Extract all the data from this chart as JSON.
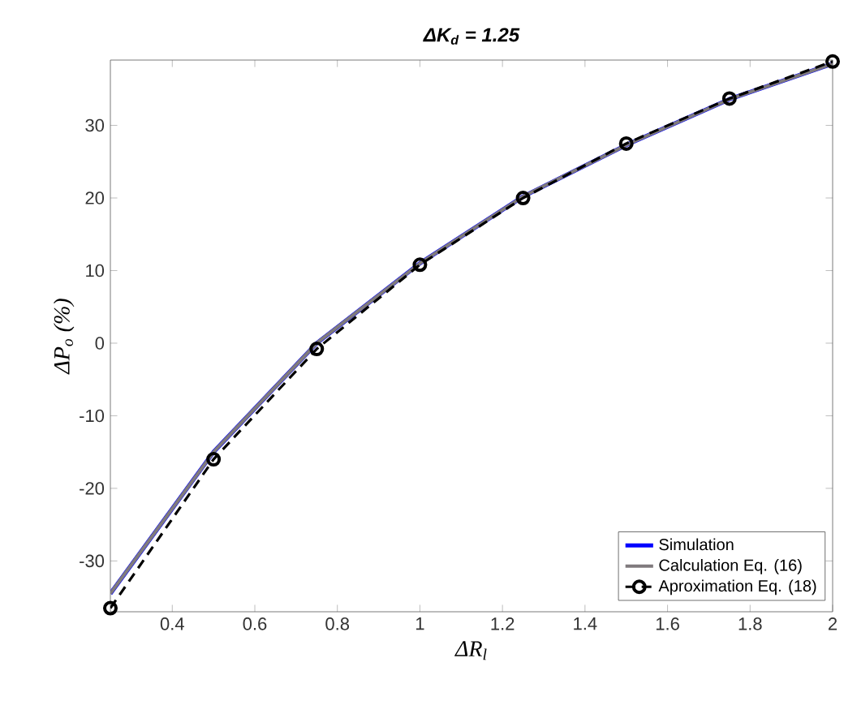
{
  "chart_data": {
    "type": "line",
    "title": "ΔK$_{d}$ = 1.25",
    "xlabel": "ΔR$_{l}$",
    "ylabel": "ΔP$_{o}$ (%)",
    "x": [
      0.25,
      0.5,
      0.75,
      1,
      1.25,
      1.5,
      1.75,
      2
    ],
    "series": [
      {
        "name": "Simulation",
        "color": "#0000ff",
        "line_style": "solid",
        "marker": "none",
        "values": [
          -34.5,
          -15,
          0,
          11,
          20.2,
          27.3,
          33.6,
          38.5
        ]
      },
      {
        "name": "Calculation Eq. (16)",
        "color": "#7f7a7d",
        "line_style": "solid",
        "marker": "none",
        "values": [
          -34.5,
          -15,
          0,
          11,
          20.2,
          27.3,
          33.6,
          38.5
        ]
      },
      {
        "name": "Aproximation Eq. (18)",
        "color": "#000000",
        "line_style": "dashed",
        "marker": "circle",
        "values": [
          -36.5,
          -16,
          -0.8,
          10.8,
          20,
          27.5,
          33.7,
          38.8
        ]
      }
    ],
    "xlim": [
      0.25,
      2
    ],
    "ylim": [
      -37,
      39
    ],
    "xticks": [
      0.4,
      0.6,
      0.8,
      1,
      1.2,
      1.4,
      1.6,
      1.8,
      2
    ],
    "yticks": [
      -30,
      -20,
      -10,
      0,
      10,
      20,
      30
    ],
    "grid": false,
    "legend": "bottom right"
  }
}
